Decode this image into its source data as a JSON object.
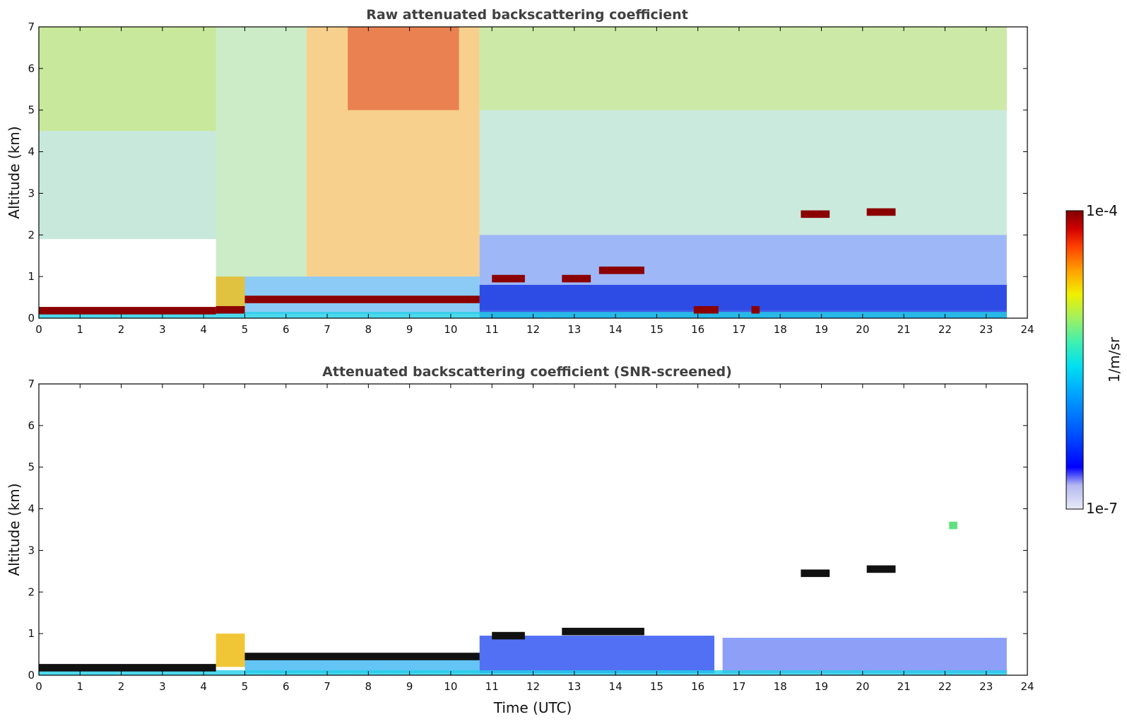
{
  "chart_data": [
    {
      "type": "heatmap",
      "id": "raw",
      "title": "Raw attenuated backscattering coefficient",
      "xlabel": "",
      "ylabel": "Altitude (km)",
      "xlim": [
        0,
        24
      ],
      "ylim": [
        0,
        7
      ],
      "xticks": [
        "0",
        "1",
        "2",
        "3",
        "4",
        "5",
        "6",
        "7",
        "8",
        "9",
        "10",
        "11",
        "12",
        "13",
        "14",
        "15",
        "16",
        "17",
        "18",
        "19",
        "20",
        "21",
        "22",
        "23",
        "24"
      ],
      "yticks": [
        "0",
        "1",
        "2",
        "3",
        "4",
        "5",
        "6",
        "7"
      ],
      "data_end_time": 23.5,
      "cloud_layers": [
        {
          "t_start": 0.0,
          "t_end": 4.3,
          "altitude_km": 0.18
        },
        {
          "t_start": 4.3,
          "t_end": 5.0,
          "altitude_km": 0.2
        },
        {
          "t_start": 5.0,
          "t_end": 10.7,
          "altitude_km": 0.45
        },
        {
          "t_start": 11.0,
          "t_end": 11.8,
          "altitude_km": 0.95
        },
        {
          "t_start": 12.7,
          "t_end": 13.4,
          "altitude_km": 0.95
        },
        {
          "t_start": 13.6,
          "t_end": 14.7,
          "altitude_km": 1.15
        },
        {
          "t_start": 18.5,
          "t_end": 19.2,
          "altitude_km": 2.5
        },
        {
          "t_start": 20.1,
          "t_end": 20.8,
          "altitude_km": 2.55
        },
        {
          "t_start": 15.9,
          "t_end": 16.5,
          "altitude_km": 0.2
        },
        {
          "t_start": 17.3,
          "t_end": 17.5,
          "altitude_km": 0.2
        }
      ]
    },
    {
      "type": "heatmap",
      "id": "screened",
      "title": "Attenuated backscattering coefficient (SNR-screened)",
      "xlabel": "Time (UTC)",
      "ylabel": "Altitude (km)",
      "xlim": [
        0,
        24
      ],
      "ylim": [
        0,
        7
      ],
      "xticks": [
        "0",
        "1",
        "2",
        "3",
        "4",
        "5",
        "6",
        "7",
        "8",
        "9",
        "10",
        "11",
        "12",
        "13",
        "14",
        "15",
        "16",
        "17",
        "18",
        "19",
        "20",
        "21",
        "22",
        "23",
        "24"
      ],
      "yticks": [
        "0",
        "1",
        "2",
        "3",
        "4",
        "5",
        "6",
        "7"
      ],
      "data_end_time": 23.5,
      "cloud_layers": [
        {
          "t_start": 0.0,
          "t_end": 4.3,
          "altitude_km": 0.18
        },
        {
          "t_start": 5.0,
          "t_end": 10.7,
          "altitude_km": 0.45
        },
        {
          "t_start": 11.0,
          "t_end": 11.8,
          "altitude_km": 0.95
        },
        {
          "t_start": 12.7,
          "t_end": 14.7,
          "altitude_km": 1.05
        },
        {
          "t_start": 18.5,
          "t_end": 19.2,
          "altitude_km": 2.45
        },
        {
          "t_start": 20.1,
          "t_end": 20.8,
          "altitude_km": 2.55
        },
        {
          "t_start": 22.1,
          "t_end": 22.3,
          "altitude_km": 3.6
        }
      ]
    }
  ],
  "colorbar": {
    "label": "1/m/sr",
    "max_label": "1e-4",
    "min_label": "1e-7",
    "colors": [
      "#e8eaf8",
      "#b4b8f0",
      "#8c90f0",
      "#0000ff",
      "#0050ff",
      "#00a0ff",
      "#00e0f0",
      "#40f0b0",
      "#a0f060",
      "#f0f000",
      "#ffa000",
      "#ff4000",
      "#d00000",
      "#800000"
    ]
  }
}
